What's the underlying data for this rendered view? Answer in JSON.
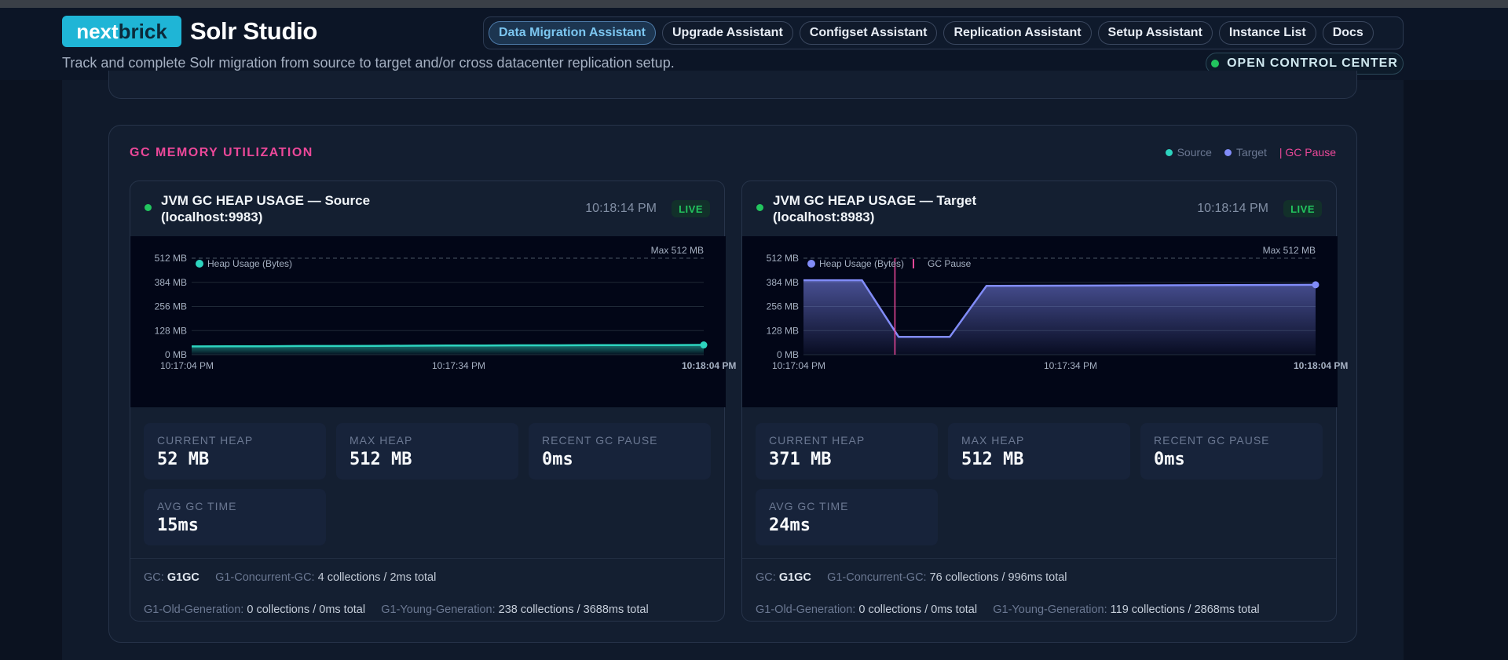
{
  "header": {
    "logo_part1": "next",
    "logo_part2": "brick",
    "app_title": "Solr Studio",
    "subtitle": "Track and complete Solr migration from source to target and/or cross datacenter replication setup.",
    "nav": [
      {
        "label": "Data Migration Assistant",
        "active": true
      },
      {
        "label": "Upgrade Assistant",
        "active": false
      },
      {
        "label": "Configset Assistant",
        "active": false
      },
      {
        "label": "Replication Assistant",
        "active": false
      },
      {
        "label": "Setup Assistant",
        "active": false
      },
      {
        "label": "Instance List",
        "active": false
      },
      {
        "label": "Docs",
        "active": false
      }
    ],
    "control_center": "OPEN CONTROL CENTER"
  },
  "gc_panel": {
    "title": "GC MEMORY UTILIZATION",
    "legend": {
      "source": "Source",
      "target": "Target",
      "gc_pause": "| GC Pause"
    },
    "colors": {
      "source": "#2dd4bf",
      "target": "#818cf8",
      "gc_pause": "#ec4899",
      "live": "#22c55e",
      "accent_title": "#ec4899"
    }
  },
  "cards": [
    {
      "title_line1": "JVM GC HEAP USAGE — Source",
      "title_line2": "(localhost:9983)",
      "time": "10:18:14 PM",
      "live": "LIVE",
      "stats": {
        "current_heap_label": "CURRENT HEAP",
        "current_heap": "52 MB",
        "max_heap_label": "MAX HEAP",
        "max_heap": "512 MB",
        "recent_gc_label": "RECENT GC PAUSE",
        "recent_gc": "0ms",
        "avg_gc_label": "AVG GC TIME",
        "avg_gc": "15ms"
      },
      "gc_info": {
        "gc_label": "GC:",
        "gc_name": "G1GC",
        "concurrent_label": "G1-Concurrent-GC:",
        "concurrent": "4 collections / 2ms total",
        "old_label": "G1-Old-Generation:",
        "old": "0 collections / 0ms total",
        "young_label": "G1-Young-Generation:",
        "young": "238 collections / 3688ms total"
      }
    },
    {
      "title_line1": "JVM GC HEAP USAGE — Target",
      "title_line2": "(localhost:8983)",
      "time": "10:18:14 PM",
      "live": "LIVE",
      "stats": {
        "current_heap_label": "CURRENT HEAP",
        "current_heap": "371 MB",
        "max_heap_label": "MAX HEAP",
        "max_heap": "512 MB",
        "recent_gc_label": "RECENT GC PAUSE",
        "recent_gc": "0ms",
        "avg_gc_label": "AVG GC TIME",
        "avg_gc": "24ms"
      },
      "gc_info": {
        "gc_label": "GC:",
        "gc_name": "G1GC",
        "concurrent_label": "G1-Concurrent-GC:",
        "concurrent": "76 collections / 996ms total",
        "old_label": "G1-Old-Generation:",
        "old": "0 collections / 0ms total",
        "young_label": "G1-Young-Generation:",
        "young": "119 collections / 2868ms total"
      }
    }
  ],
  "chart_data": [
    {
      "type": "area",
      "y_ticks": [
        "512 MB",
        "384 MB",
        "256 MB",
        "128 MB",
        "0 MB"
      ],
      "x_ticks": [
        "10:17:04 PM",
        "10:17:34 PM",
        "10:18:04 PM"
      ],
      "ylim": [
        0,
        512
      ],
      "max_label": "Max 512 MB",
      "series": [
        {
          "name": "Heap Usage (Bytes)",
          "color": "#2dd4bf",
          "x": [
            0,
            5,
            10,
            15,
            20,
            25,
            30,
            35,
            40,
            45,
            50,
            55,
            60,
            65,
            70
          ],
          "values": [
            44,
            45,
            45,
            46,
            46,
            47,
            48,
            49,
            49,
            50,
            50,
            51,
            51,
            51,
            52
          ]
        }
      ]
    },
    {
      "type": "area",
      "y_ticks": [
        "512 MB",
        "384 MB",
        "256 MB",
        "128 MB",
        "0 MB"
      ],
      "x_ticks": [
        "10:17:04 PM",
        "10:17:34 PM",
        "10:18:04 PM"
      ],
      "ylim": [
        0,
        512
      ],
      "max_label": "Max 512 MB",
      "series": [
        {
          "name": "Heap Usage (Bytes)",
          "color": "#818cf8",
          "x": [
            0,
            8,
            13,
            17,
            20,
            25,
            70
          ],
          "values": [
            395,
            395,
            95,
            95,
            95,
            365,
            371
          ]
        }
      ],
      "gc_pause": {
        "name": "GC Pause",
        "x": 12.5
      }
    }
  ]
}
